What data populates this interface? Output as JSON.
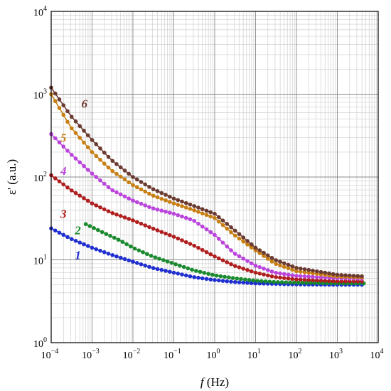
{
  "chart_data": {
    "type": "line",
    "title": "",
    "xlabel_symbol": "f",
    "xlabel_unit": " (Hz)",
    "ylabel": "ε' (a.u.)",
    "xscale": "log",
    "yscale": "log",
    "xlim": [
      0.0001,
      10000
    ],
    "ylim": [
      1,
      10000
    ],
    "grid": true,
    "x_ticks": [
      {
        "base": "10",
        "exp": "−4"
      },
      {
        "base": "10",
        "exp": "−3"
      },
      {
        "base": "10",
        "exp": "−2"
      },
      {
        "base": "10",
        "exp": "−1"
      },
      {
        "base": "10",
        "exp": "0"
      },
      {
        "base": "10",
        "exp": "1"
      },
      {
        "base": "10",
        "exp": "2"
      },
      {
        "base": "10",
        "exp": "3"
      },
      {
        "base": "10",
        "exp": "4"
      }
    ],
    "y_ticks": [
      {
        "base": "10",
        "exp": "0"
      },
      {
        "base": "10",
        "exp": "1"
      },
      {
        "base": "10",
        "exp": "2"
      },
      {
        "base": "10",
        "exp": "3"
      },
      {
        "base": "10",
        "exp": "4"
      }
    ],
    "series": [
      {
        "label": "1",
        "color": "#1f2fd0",
        "x_min": 0.0001,
        "x_max": 5000,
        "points": [
          [
            0.0001,
            24
          ],
          [
            0.0003,
            18
          ],
          [
            0.001,
            14
          ],
          [
            0.003,
            11.5
          ],
          [
            0.01,
            9.5
          ],
          [
            0.03,
            8
          ],
          [
            0.1,
            7
          ],
          [
            0.3,
            6.2
          ],
          [
            1,
            5.7
          ],
          [
            3,
            5.4
          ],
          [
            10,
            5.2
          ],
          [
            100,
            5.05
          ],
          [
            1000,
            5
          ],
          [
            5000,
            5
          ]
        ]
      },
      {
        "label": "2",
        "color": "#1a8a2e",
        "x_min": 0.0007,
        "x_max": 5000,
        "points": [
          [
            0.0007,
            27
          ],
          [
            0.002,
            21
          ],
          [
            0.005,
            17
          ],
          [
            0.01,
            14
          ],
          [
            0.03,
            11
          ],
          [
            0.1,
            9
          ],
          [
            0.3,
            7.5
          ],
          [
            1,
            6.5
          ],
          [
            3,
            6
          ],
          [
            10,
            5.6
          ],
          [
            30,
            5.4
          ],
          [
            100,
            5.3
          ],
          [
            1000,
            5.2
          ],
          [
            5000,
            5.2
          ]
        ]
      },
      {
        "label": "3",
        "color": "#b01e1e",
        "x_min": 0.0001,
        "x_max": 5000,
        "points": [
          [
            0.0001,
            105
          ],
          [
            0.0003,
            70
          ],
          [
            0.001,
            48
          ],
          [
            0.003,
            37
          ],
          [
            0.01,
            30
          ],
          [
            0.03,
            24
          ],
          [
            0.1,
            19
          ],
          [
            0.3,
            15
          ],
          [
            1,
            11
          ],
          [
            3,
            8.5
          ],
          [
            10,
            7
          ],
          [
            30,
            6.2
          ],
          [
            100,
            5.8
          ],
          [
            1000,
            5.5
          ],
          [
            5000,
            5.5
          ]
        ]
      },
      {
        "label": "4",
        "color": "#bb44dd",
        "x_min": 0.0001,
        "x_max": 5000,
        "points": [
          [
            0.0001,
            330
          ],
          [
            0.0003,
            190
          ],
          [
            0.001,
            110
          ],
          [
            0.003,
            70
          ],
          [
            0.01,
            52
          ],
          [
            0.03,
            42
          ],
          [
            0.1,
            36
          ],
          [
            0.3,
            30
          ],
          [
            1,
            20
          ],
          [
            3,
            12
          ],
          [
            10,
            8.5
          ],
          [
            30,
            7
          ],
          [
            100,
            6.4
          ],
          [
            1000,
            6
          ],
          [
            5000,
            5.9
          ]
        ]
      },
      {
        "label": "5",
        "color": "#c87f12",
        "x_min": 0.0001,
        "x_max": 5000,
        "points": [
          [
            0.0001,
            1000
          ],
          [
            0.0003,
            400
          ],
          [
            0.001,
            200
          ],
          [
            0.003,
            120
          ],
          [
            0.01,
            80
          ],
          [
            0.03,
            60
          ],
          [
            0.1,
            48
          ],
          [
            0.3,
            40
          ],
          [
            1,
            32
          ],
          [
            3,
            20
          ],
          [
            10,
            13
          ],
          [
            30,
            9
          ],
          [
            100,
            7.3
          ],
          [
            1000,
            6.3
          ],
          [
            5000,
            6.1
          ]
        ]
      },
      {
        "label": "6",
        "color": "#6b3a30",
        "x_min": 0.0001,
        "x_max": 5000,
        "points": [
          [
            0.0001,
            1200
          ],
          [
            0.0003,
            550
          ],
          [
            0.001,
            280
          ],
          [
            0.003,
            160
          ],
          [
            0.01,
            100
          ],
          [
            0.03,
            72
          ],
          [
            0.1,
            55
          ],
          [
            0.3,
            45
          ],
          [
            1,
            36
          ],
          [
            3,
            23
          ],
          [
            10,
            14
          ],
          [
            30,
            10
          ],
          [
            100,
            8
          ],
          [
            1000,
            6.6
          ],
          [
            5000,
            6.3
          ]
        ]
      }
    ],
    "curve_label_positions": [
      {
        "label": "1",
        "x": 0.00045,
        "y": 11.5
      },
      {
        "label": "2",
        "x": 0.00045,
        "y": 23
      },
      {
        "label": "3",
        "x": 0.0002,
        "y": 36
      },
      {
        "label": "4",
        "x": 0.0002,
        "y": 120
      },
      {
        "label": "5",
        "x": 0.0002,
        "y": 300
      },
      {
        "label": "6",
        "x": 0.00065,
        "y": 770
      }
    ]
  }
}
